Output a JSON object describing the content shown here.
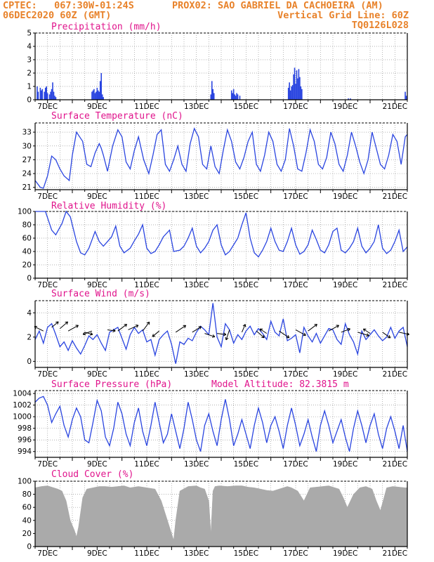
{
  "header": {
    "line1_left": "CPTEC:   067:30W-01:24S",
    "line1_right": "PROX02: SAO GABRIEL DA CACHOEIRA (AM)",
    "line2_left": "06DEC2020 60Z (GMT)",
    "line2_right": "Vertical Grid Line: 60Z",
    "line3_right": "TQ0126L028"
  },
  "colors": {
    "header": "#e8822a",
    "title": "#e0148c",
    "line": "#2a45e0",
    "cloud": "#aaaaaa",
    "arrow": "#000000"
  },
  "x_axis_labels": [
    "7DEC",
    "9DEC",
    "11DEC",
    "13DEC",
    "15DEC",
    "17DEC",
    "19DEC",
    "21DEC"
  ],
  "chart_data": [
    {
      "type": "bar",
      "title": "Precipitation (mm/h)",
      "ylim": [
        0,
        5
      ],
      "yticks": [
        0,
        1,
        2,
        3,
        4,
        5
      ],
      "x_domain_hours": [
        0,
        360
      ],
      "bars": [
        [
          2,
          1.0
        ],
        [
          3,
          0.6
        ],
        [
          5,
          0.9
        ],
        [
          6,
          0.7
        ],
        [
          7,
          0.8
        ],
        [
          9,
          0.6
        ],
        [
          10,
          0.9
        ],
        [
          11,
          1.0
        ],
        [
          12,
          0.5
        ],
        [
          14,
          0.4
        ],
        [
          15,
          0.6
        ],
        [
          16,
          0.8
        ],
        [
          17,
          1.3
        ],
        [
          18,
          0.6
        ],
        [
          19,
          0.3
        ],
        [
          20,
          0.2
        ],
        [
          55,
          0.6
        ],
        [
          56,
          0.7
        ],
        [
          57,
          0.8
        ],
        [
          58,
          0.5
        ],
        [
          59,
          0.6
        ],
        [
          60,
          0.9
        ],
        [
          61,
          0.7
        ],
        [
          62,
          0.6
        ],
        [
          63,
          1.4
        ],
        [
          64,
          2.0
        ],
        [
          65,
          0.4
        ],
        [
          66,
          0.2
        ],
        [
          170,
          0.4
        ],
        [
          171,
          1.4
        ],
        [
          172,
          0.8
        ],
        [
          173,
          0.5
        ],
        [
          190,
          0.7
        ],
        [
          191,
          0.5
        ],
        [
          192,
          0.8
        ],
        [
          193,
          0.4
        ],
        [
          194,
          0.3
        ],
        [
          195,
          0.5
        ],
        [
          196,
          0.4
        ],
        [
          198,
          0.3
        ],
        [
          245,
          0.9
        ],
        [
          246,
          1.3
        ],
        [
          247,
          0.7
        ],
        [
          248,
          1.0
        ],
        [
          249,
          1.1
        ],
        [
          250,
          1.9
        ],
        [
          251,
          2.4
        ],
        [
          252,
          1.2
        ],
        [
          253,
          2.2
        ],
        [
          254,
          1.6
        ],
        [
          255,
          2.3
        ],
        [
          256,
          1.7
        ],
        [
          257,
          1.0
        ],
        [
          258,
          0.8
        ],
        [
          303,
          0.1
        ],
        [
          305,
          0.1
        ],
        [
          358,
          0.6
        ],
        [
          359,
          0.3
        ]
      ]
    },
    {
      "type": "line",
      "title": "Surface Temperature (nC)",
      "ylim": [
        20.5,
        35
      ],
      "yticks": [
        21,
        24,
        27,
        30,
        33
      ],
      "x_domain_hours": [
        0,
        360
      ],
      "x": [
        0,
        5,
        8,
        12,
        16,
        20,
        24,
        28,
        33,
        36,
        40,
        46,
        50,
        54,
        58,
        62,
        64,
        66,
        70,
        75,
        80,
        84,
        88,
        92,
        96,
        100,
        105,
        110,
        114,
        118,
        122,
        126,
        130,
        134,
        138,
        142,
        146,
        150,
        154,
        158,
        162,
        166,
        170,
        174,
        178,
        182,
        186,
        190,
        194,
        198,
        202,
        206,
        210,
        214,
        218,
        222,
        226,
        230,
        234,
        238,
        242,
        246,
        250,
        254,
        258,
        262,
        266,
        270,
        274,
        278,
        282,
        286,
        290,
        294,
        298,
        302,
        306,
        310,
        314,
        318,
        322,
        326,
        330,
        334,
        338,
        342,
        346,
        350,
        354,
        358,
        360
      ],
      "values": [
        22.5,
        21.0,
        20.8,
        23.5,
        27.8,
        27.0,
        25.0,
        23.5,
        22.5,
        28.0,
        33.0,
        31.0,
        26.0,
        25.5,
        28.5,
        30.5,
        29.5,
        28.0,
        24.5,
        30.0,
        33.5,
        32.0,
        26.5,
        25.0,
        29.0,
        32.0,
        27.0,
        24.0,
        28.0,
        32.5,
        33.5,
        26.0,
        24.5,
        27.0,
        30.0,
        26.0,
        24.5,
        30.5,
        33.8,
        32.0,
        26.0,
        25.0,
        30.0,
        25.5,
        24.0,
        29.0,
        33.5,
        31.0,
        26.5,
        25.0,
        27.5,
        31.0,
        33.0,
        26.0,
        24.5,
        28.0,
        33.0,
        31.0,
        26.0,
        24.5,
        27.0,
        33.8,
        30.0,
        25.0,
        24.5,
        28.5,
        33.5,
        31.0,
        26.0,
        25.0,
        27.5,
        33.0,
        30.5,
        26.0,
        24.5,
        28.0,
        33.0,
        30.0,
        26.5,
        24.0,
        27.0,
        33.0,
        29.5,
        26.0,
        25.0,
        28.0,
        32.5,
        31.0,
        26.0,
        32.0,
        32.5
      ]
    },
    {
      "type": "line",
      "title": "Relative Humidity (%)",
      "ylim": [
        0,
        100
      ],
      "yticks": [
        0,
        20,
        40,
        60,
        80,
        100
      ],
      "x_domain_hours": [
        0,
        360
      ],
      "x": [
        0,
        10,
        16,
        20,
        26,
        30,
        34,
        40,
        44,
        48,
        52,
        58,
        62,
        66,
        70,
        74,
        78,
        82,
        86,
        92,
        96,
        100,
        104,
        108,
        112,
        116,
        120,
        124,
        130,
        134,
        140,
        144,
        148,
        152,
        156,
        160,
        164,
        168,
        172,
        176,
        180,
        184,
        188,
        192,
        196,
        200,
        204,
        208,
        212,
        216,
        220,
        224,
        228,
        232,
        236,
        240,
        244,
        248,
        252,
        256,
        260,
        264,
        268,
        272,
        276,
        280,
        284,
        288,
        292,
        296,
        300,
        304,
        308,
        312,
        316,
        320,
        324,
        328,
        332,
        336,
        340,
        344,
        348,
        352,
        356,
        360
      ],
      "values": [
        100,
        100,
        72,
        65,
        82,
        100,
        92,
        55,
        38,
        35,
        45,
        70,
        55,
        48,
        55,
        62,
        78,
        48,
        38,
        45,
        56,
        66,
        80,
        45,
        37,
        40,
        50,
        62,
        72,
        40,
        42,
        48,
        60,
        75,
        48,
        38,
        45,
        55,
        72,
        80,
        50,
        35,
        40,
        50,
        60,
        80,
        98,
        60,
        38,
        32,
        42,
        55,
        75,
        55,
        42,
        40,
        55,
        75,
        50,
        36,
        40,
        50,
        72,
        58,
        42,
        38,
        50,
        70,
        75,
        42,
        38,
        45,
        55,
        75,
        48,
        38,
        45,
        55,
        80,
        45,
        37,
        42,
        55,
        72,
        40,
        47
      ]
    },
    {
      "type": "line",
      "title": "Surface Wind (m/s)",
      "ylim": [
        -0.5,
        5
      ],
      "yticks": [
        0,
        2,
        4
      ],
      "x_domain_hours": [
        0,
        360
      ],
      "x": [
        0,
        4,
        8,
        12,
        16,
        20,
        24,
        28,
        32,
        36,
        40,
        44,
        48,
        52,
        56,
        60,
        64,
        68,
        72,
        76,
        80,
        84,
        88,
        92,
        96,
        100,
        104,
        108,
        112,
        116,
        120,
        124,
        128,
        132,
        136,
        140,
        144,
        148,
        152,
        156,
        160,
        164,
        168,
        172,
        176,
        180,
        184,
        188,
        192,
        196,
        200,
        204,
        208,
        212,
        216,
        220,
        224,
        228,
        232,
        236,
        240,
        244,
        248,
        252,
        256,
        260,
        264,
        268,
        272,
        276,
        280,
        284,
        288,
        292,
        296,
        300,
        304,
        308,
        312,
        316,
        320,
        324,
        328,
        332,
        336,
        340,
        344,
        348,
        352,
        356,
        360
      ],
      "values": [
        1.8,
        2.5,
        1.5,
        2.8,
        3.1,
        2.2,
        1.2,
        1.6,
        0.9,
        1.7,
        1.1,
        0.6,
        1.3,
        2.1,
        1.8,
        2.2,
        1.5,
        0.9,
        2.4,
        2.6,
        2.8,
        1.9,
        1.0,
        2.2,
        2.8,
        2.3,
        2.6,
        1.6,
        1.8,
        0.5,
        1.8,
        2.2,
        2.5,
        1.4,
        -0.2,
        1.6,
        1.4,
        1.9,
        1.7,
        2.4,
        2.9,
        2.6,
        2.2,
        4.8,
        2.0,
        1.2,
        3.1,
        2.6,
        1.5,
        2.2,
        1.8,
        2.5,
        2.9,
        2.2,
        2.7,
        2.3,
        1.8,
        3.3,
        2.4,
        2.1,
        3.5,
        1.7,
        1.9,
        2.2,
        0.7,
        2.8,
        2.1,
        1.6,
        2.3,
        1.5,
        2.1,
        2.7,
        2.6,
        1.8,
        1.4,
        3.1,
        2.2,
        1.6,
        0.6,
        2.5,
        1.8,
        2.2,
        2.6,
        2.1,
        1.7,
        2.0,
        2.8,
        1.9,
        2.5,
        2.8,
        1.2
      ],
      "vectors": [
        [
          8,
          2.5,
          -0.8,
          -0.4
        ],
        [
          16,
          2.8,
          0.6,
          -0.5
        ],
        [
          24,
          2.7,
          0.7,
          -0.6
        ],
        [
          32,
          2.5,
          0.9,
          -0.5
        ],
        [
          48,
          2.4,
          0.7,
          0.2
        ],
        [
          55,
          2.5,
          -0.8,
          0.3
        ],
        [
          70,
          2.6,
          0.7,
          0.1
        ],
        [
          80,
          2.5,
          0.8,
          -0.6
        ],
        [
          90,
          2.6,
          0.9,
          -0.4
        ],
        [
          104,
          2.5,
          0.6,
          -0.8
        ],
        [
          120,
          2.5,
          -0.6,
          0.5
        ],
        [
          136,
          2.4,
          0.9,
          -0.6
        ],
        [
          152,
          2.4,
          0.8,
          -0.5
        ],
        [
          164,
          2.3,
          0.9,
          0.3
        ],
        [
          176,
          2.3,
          0.8,
          0.1
        ],
        [
          188,
          2.6,
          -0.3,
          0.9
        ],
        [
          200,
          2.4,
          0.3,
          -0.7
        ],
        [
          214,
          2.5,
          0.7,
          0.6
        ],
        [
          224,
          2.3,
          -0.6,
          -0.4
        ],
        [
          236,
          2.5,
          0.9,
          0.6
        ],
        [
          252,
          2.6,
          0.9,
          0.5
        ],
        [
          264,
          2.5,
          0.8,
          -0.6
        ],
        [
          284,
          2.5,
          0.9,
          -0.5
        ],
        [
          296,
          2.4,
          0.8,
          -0.3
        ],
        [
          312,
          2.4,
          1.0,
          0.3
        ],
        [
          324,
          2.3,
          -0.6,
          -0.4
        ],
        [
          336,
          2.4,
          0.7,
          0.5
        ],
        [
          352,
          2.4,
          0.9,
          0.2
        ]
      ]
    },
    {
      "type": "line",
      "title": "Surface Pressure (hPa)",
      "annotation": "Model Altitude: 82.3815 m",
      "ylim": [
        993,
        1004.5
      ],
      "yticks": [
        994,
        996,
        998,
        1000,
        1002,
        1004
      ],
      "x_domain_hours": [
        0,
        360
      ],
      "x": [
        0,
        4,
        8,
        12,
        16,
        20,
        24,
        28,
        32,
        36,
        40,
        44,
        48,
        52,
        56,
        60,
        64,
        68,
        72,
        76,
        80,
        84,
        88,
        92,
        96,
        100,
        104,
        108,
        112,
        116,
        120,
        124,
        128,
        132,
        136,
        140,
        144,
        148,
        152,
        156,
        160,
        164,
        168,
        172,
        176,
        180,
        184,
        188,
        192,
        196,
        200,
        204,
        208,
        212,
        216,
        220,
        224,
        228,
        232,
        236,
        240,
        244,
        248,
        252,
        256,
        260,
        264,
        268,
        272,
        276,
        280,
        284,
        288,
        292,
        296,
        300,
        304,
        308,
        312,
        316,
        320,
        324,
        328,
        332,
        336,
        340,
        344,
        348,
        352,
        356,
        360
      ],
      "values": [
        1002.5,
        1003.2,
        1003.5,
        1002.0,
        999.0,
        1000.5,
        1001.8,
        998.5,
        996.5,
        999.5,
        1001.5,
        1000.0,
        996.0,
        995.5,
        999.0,
        1002.8,
        1001.0,
        996.5,
        995.0,
        998.0,
        1002.5,
        1000.5,
        997.0,
        995.0,
        999.0,
        1001.5,
        997.5,
        995.0,
        998.5,
        1002.5,
        999.0,
        995.5,
        997.0,
        1000.5,
        997.5,
        994.5,
        998.0,
        1002.5,
        999.5,
        996.0,
        994.0,
        998.5,
        1000.5,
        997.5,
        995.0,
        999.5,
        1003.0,
        999.5,
        995.0,
        997.0,
        999.5,
        997.0,
        994.5,
        998.5,
        1001.5,
        999.0,
        995.5,
        998.5,
        1000.0,
        997.5,
        994.5,
        998.5,
        1001.5,
        998.5,
        995.0,
        997.0,
        999.5,
        996.5,
        994.0,
        998.5,
        1001.0,
        998.5,
        995.5,
        997.5,
        999.5,
        996.5,
        994.0,
        998.0,
        1001.0,
        998.5,
        995.5,
        998.5,
        1000.5,
        997.0,
        994.5,
        998.0,
        1000.0,
        997.5,
        994.5,
        998.5,
        994.0
      ]
    },
    {
      "type": "area",
      "title": "Cloud Cover (%)",
      "ylim": [
        0,
        100
      ],
      "yticks": [
        0,
        20,
        40,
        60,
        80,
        100
      ],
      "x_domain_hours": [
        0,
        360
      ],
      "x": [
        0,
        6,
        12,
        18,
        22,
        26,
        30,
        34,
        38,
        40,
        42,
        46,
        50,
        56,
        62,
        68,
        74,
        80,
        86,
        92,
        100,
        108,
        116,
        122,
        128,
        132,
        134,
        136,
        140,
        148,
        156,
        160,
        164,
        168,
        170,
        172,
        174,
        178,
        186,
        194,
        200,
        206,
        212,
        218,
        224,
        230,
        236,
        240,
        244,
        248,
        254,
        260,
        266,
        272,
        278,
        284,
        290,
        294,
        298,
        302,
        308,
        314,
        320,
        326,
        330,
        334,
        340,
        346,
        352,
        358,
        360
      ],
      "values": [
        90,
        92,
        93,
        90,
        88,
        85,
        70,
        40,
        25,
        15,
        30,
        75,
        88,
        90,
        92,
        92,
        91,
        92,
        93,
        90,
        92,
        90,
        88,
        70,
        40,
        20,
        10,
        40,
        85,
        92,
        93,
        90,
        88,
        70,
        20,
        85,
        92,
        93,
        92,
        93,
        93,
        91,
        90,
        88,
        86,
        85,
        88,
        90,
        92,
        90,
        85,
        70,
        90,
        91,
        92,
        93,
        90,
        88,
        75,
        60,
        80,
        90,
        92,
        88,
        70,
        55,
        90,
        92,
        91,
        90,
        90
      ]
    }
  ]
}
